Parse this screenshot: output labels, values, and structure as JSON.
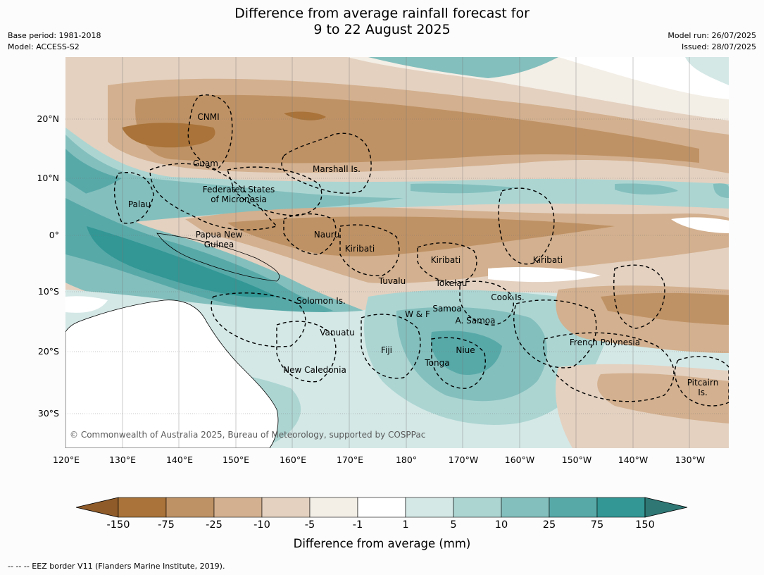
{
  "title_line1": "Difference from average rainfall forecast for",
  "title_line2": "9 to 22 August 2025",
  "base_period": "Base period: 1981-2018",
  "model": "Model: ACCESS-S2",
  "model_run": "Model run: 26/07/2025",
  "issued": "Issued: 28/07/2025",
  "lat_labels": [
    "20°N",
    "10°N",
    "0°",
    "10°S",
    "20°S",
    "30°S"
  ],
  "lon_labels": [
    "120°E",
    "130°E",
    "140°E",
    "150°E",
    "160°E",
    "170°E",
    "180°",
    "170°W",
    "160°W",
    "150°W",
    "140°W",
    "130°W"
  ],
  "places": {
    "cnmi": "CNMI",
    "guam": "Guam",
    "marshall": "Marshall Is.",
    "fsm1": "Federated States",
    "fsm2": "of Micronesia",
    "palau": "Palau",
    "png1": "Papua New",
    "png2": "Guinea",
    "nauru": "Nauru",
    "kiribati_w": "Kiribati",
    "kiribati_c": "Kiribati",
    "kiribati_e": "Kiribati",
    "tuvalu": "Tuvalu",
    "tokelau": "Tokelau",
    "cook": "Cook Is.",
    "solomon": "Solomon Is.",
    "wf": "W & F",
    "samoa": "Samoa",
    "asamoa": "A. Samoa",
    "vanuatu": "Vanuatu",
    "fiji": "Fiji",
    "niue": "Niue",
    "tonga": "Tonga",
    "frenchpoly": "French Polynesia",
    "newcal": "New Caledonia",
    "pitcairn1": "Pitcairn",
    "pitcairn2": "Is."
  },
  "copyright": "© Commonwealth of Australia 2025, Bureau of Meteorology, supported by COSPPac",
  "colorbar": {
    "ticks": [
      "-150",
      "-75",
      "-25",
      "-10",
      "-5",
      "-1",
      "1",
      "5",
      "10",
      "25",
      "75",
      "150"
    ],
    "colors": [
      "#a97339",
      "#bf9265",
      "#d3b08f",
      "#e4d1c0",
      "#f3eee6",
      "#ffffff",
      "#d4e8e6",
      "#acd5d2",
      "#83bfbd",
      "#57a9a8",
      "#329795"
    ],
    "low_color": "#8f5b29",
    "high_color": "#2e7775",
    "label": "Difference from average (mm)"
  },
  "footnote": "--  --  -- EEZ border V11 (Flanders Marine Institute, 2019)."
}
